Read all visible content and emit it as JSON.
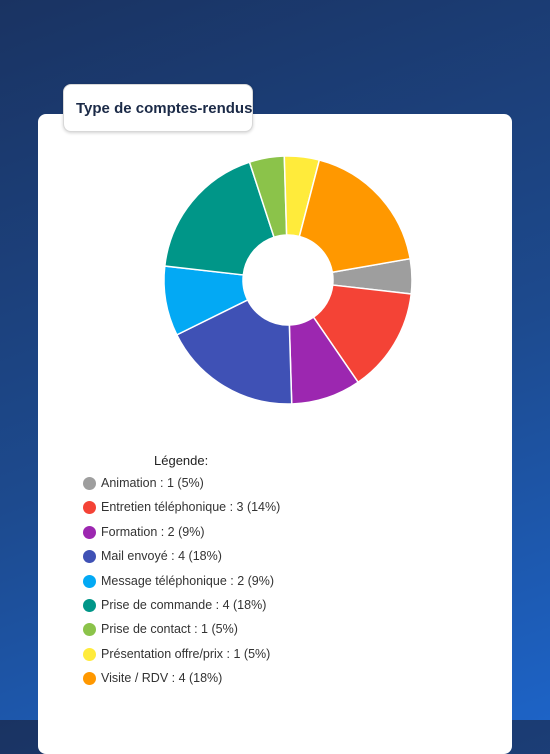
{
  "title": "Type de comptes-rendus",
  "legend_title": "Légende:",
  "chart_data": {
    "type": "pie",
    "donut": true,
    "title": "Type de comptes-rendus",
    "slices": [
      {
        "label": "Animation",
        "value": 1,
        "percent": "5%",
        "color": "#9e9e9e"
      },
      {
        "label": "Entretien téléphonique",
        "value": 3,
        "percent": "14%",
        "color": "#f44336"
      },
      {
        "label": "Formation",
        "value": 2,
        "percent": "9%",
        "color": "#9c27b0"
      },
      {
        "label": "Mail envoyé",
        "value": 4,
        "percent": "18%",
        "color": "#3f51b5"
      },
      {
        "label": "Message téléphonique",
        "value": 2,
        "percent": "9%",
        "color": "#03a9f4"
      },
      {
        "label": "Prise de commande",
        "value": 4,
        "percent": "18%",
        "color": "#009688"
      },
      {
        "label": "Prise de contact",
        "value": 1,
        "percent": "5%",
        "color": "#8bc34a"
      },
      {
        "label": "Présentation offre/prix",
        "value": 1,
        "percent": "5%",
        "color": "#ffeb3b"
      },
      {
        "label": "Visite / RDV",
        "value": 4,
        "percent": "18%",
        "color": "#ff9800"
      }
    ],
    "legend_entries": [
      "Animation : 1 (5%)",
      "Entretien téléphonique : 3 (14%)",
      "Formation : 2 (9%)",
      "Mail envoyé : 4 (18%)",
      "Message téléphonique : 2 (9%)",
      "Prise de commande : 4 (18%)",
      "Prise de contact : 1 (5%)",
      "Présentation offre/prix : 1 (5%)",
      "Visite / RDV : 4 (18%)"
    ],
    "legend_placement": "bottom"
  }
}
